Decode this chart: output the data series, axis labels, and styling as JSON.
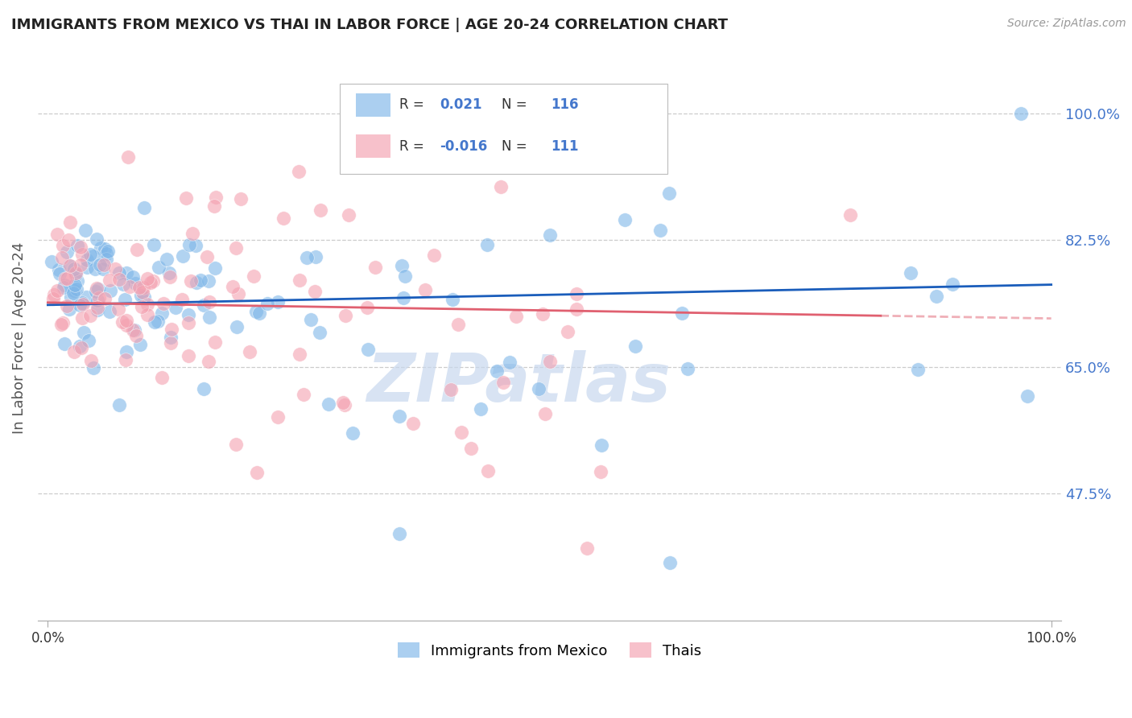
{
  "title": "IMMIGRANTS FROM MEXICO VS THAI IN LABOR FORCE | AGE 20-24 CORRELATION CHART",
  "source": "Source: ZipAtlas.com",
  "ylabel": "In Labor Force | Age 20-24",
  "ytick_vals": [
    0.475,
    0.65,
    0.825,
    1.0
  ],
  "ytick_labels": [
    "47.5%",
    "65.0%",
    "82.5%",
    "100.0%"
  ],
  "ylim": [
    0.3,
    1.08
  ],
  "xlim": [
    -0.01,
    1.01
  ],
  "blue_color": "#7EB6E8",
  "pink_color": "#F4A0B0",
  "blue_line_color": "#1A5DBB",
  "pink_line_color": "#E06070",
  "blue_R": 0.021,
  "blue_N": 116,
  "pink_R": -0.016,
  "pink_N": 111,
  "legend_label_blue": "Immigrants from Mexico",
  "legend_label_pink": "Thais",
  "background_color": "#ffffff",
  "grid_color": "#cccccc",
  "title_color": "#222222",
  "label_color": "#4477CC",
  "watermark_color": "#C8D8EE",
  "seed": 12345
}
